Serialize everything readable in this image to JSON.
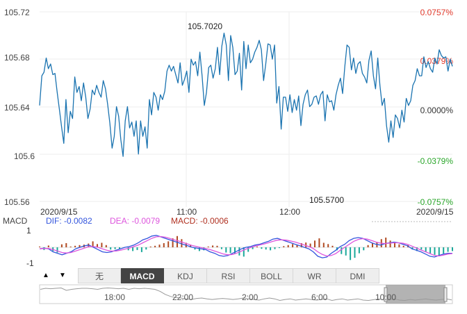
{
  "chart_data": [
    {
      "type": "line",
      "title": "",
      "y_left_ticks": [
        "105.72",
        "105.68",
        "105.64",
        "105.6",
        "105.56"
      ],
      "y_right_ticks": [
        "0.0757%",
        "0.0379%",
        "0.0000%",
        "-0.0379%",
        "-0.0757%"
      ],
      "x_ticks": [
        "2020/9/15",
        "11:00",
        "12:00",
        "2020/9/15"
      ],
      "ylim": [
        105.56,
        105.72
      ],
      "xlim": [
        0,
        186
      ],
      "annotations": {
        "high": "105.7020",
        "low": "105.5700"
      },
      "series": [
        {
          "values": [
            105.641,
            105.666,
            105.669,
            105.681,
            105.672,
            105.676,
            105.667,
            105.668,
            105.652,
            105.638,
            105.623,
            105.609,
            105.646,
            105.618,
            105.636,
            105.63,
            105.665,
            105.652,
            105.657,
            105.645,
            105.66,
            105.648,
            105.63,
            105.638,
            105.654,
            105.65,
            105.658,
            105.652,
            105.648,
            105.662,
            105.655,
            105.642,
            105.626,
            105.605,
            105.615,
            105.64,
            105.632,
            105.612,
            105.598,
            105.628,
            105.64,
            105.622,
            105.627,
            105.615,
            105.628,
            105.6,
            105.628,
            105.615,
            105.623,
            105.605,
            105.646,
            105.633,
            105.652,
            105.648,
            105.637,
            105.65,
            105.646,
            105.653,
            105.67,
            105.675,
            105.67,
            105.674,
            105.667,
            105.66,
            105.677,
            105.658,
            105.663,
            105.67,
            105.652,
            105.68,
            105.675,
            105.678,
            105.666,
            105.686,
            105.666,
            105.641,
            105.652,
            105.673,
            105.675,
            105.664,
            105.672,
            105.69,
            105.667,
            105.691,
            105.702,
            105.692,
            105.662,
            105.7,
            105.69,
            105.667,
            105.67,
            105.685,
            105.654,
            105.695,
            105.672,
            105.692,
            105.677,
            105.68,
            105.686,
            105.69,
            105.696,
            105.688,
            105.662,
            105.676,
            105.693,
            105.692,
            105.68,
            105.692,
            105.643,
            105.657,
            105.621,
            105.648,
            105.648,
            105.636,
            105.65,
            105.635,
            105.646,
            105.637,
            105.649,
            105.624,
            105.642,
            105.65,
            105.654,
            105.64,
            105.642,
            105.648,
            105.649,
            105.642,
            105.65,
            105.653,
            105.628,
            105.65,
            105.644,
            105.645,
            105.637,
            105.65,
            105.658,
            105.664,
            105.651,
            105.674,
            105.692,
            105.69,
            105.671,
            105.681,
            105.668,
            105.676,
            105.678,
            105.668,
            105.665,
            105.66,
            105.679,
            105.687,
            105.666,
            105.655,
            105.681,
            105.658,
            105.641,
            105.647,
            105.624,
            105.61,
            105.628,
            105.614,
            105.633,
            105.63,
            105.622,
            105.637,
            105.627,
            105.647,
            105.641,
            105.645,
            105.658,
            105.662,
            105.672,
            105.666,
            105.666,
            105.682,
            105.673,
            105.678,
            105.672,
            105.669,
            105.681,
            105.676,
            105.688,
            105.683,
            105.681,
            105.682,
            105.67,
            105.68,
            105.674
          ]
        }
      ]
    },
    {
      "type": "bar",
      "title": "MACD",
      "ylim": [
        -1.3,
        1.3
      ],
      "y_ticks": [
        "1",
        "-1"
      ],
      "legend": {
        "dif": "DIF: -0.0082",
        "dea": "DEA: -0.0079",
        "macd": "MACD: -0.0006"
      },
      "series": [
        {
          "name": "DIF",
          "values": [
            -0.1,
            -0.05,
            -0.1,
            -0.3,
            -0.4,
            -0.5,
            -0.4,
            -0.3,
            -0.1,
            0.0,
            0.1,
            0.15,
            0.0,
            -0.15,
            -0.3,
            -0.35,
            -0.3,
            -0.2,
            -0.1,
            0.0,
            0.05,
            0.15,
            0.3,
            0.5,
            0.6,
            0.75,
            0.8,
            0.7,
            0.6,
            0.5,
            0.4,
            0.3,
            0.2,
            0.1,
            0.0,
            -0.05,
            -0.1,
            -0.15,
            -0.3,
            -0.4,
            -0.55,
            -0.6,
            -0.55,
            -0.4,
            -0.25,
            -0.1,
            0.0,
            0.05,
            0.15,
            0.2,
            0.3,
            0.4,
            0.55,
            0.6,
            0.5,
            0.4,
            0.3,
            0.2,
            0.1,
            0.0,
            -0.1,
            -0.3,
            -0.6,
            -0.7,
            -0.65,
            -0.4,
            -0.2,
            0.05,
            0.2,
            0.45,
            0.6,
            0.65,
            0.6,
            0.45,
            0.3,
            0.2,
            0.15,
            0.25,
            0.3,
            0.35,
            0.3,
            0.2,
            0.1,
            -0.1,
            -0.2,
            -0.3,
            -0.45,
            -0.6,
            -0.65,
            -0.55,
            -0.45,
            -0.4,
            -0.4
          ]
        },
        {
          "name": "DEA",
          "values": [
            -0.1,
            -0.08,
            -0.08,
            -0.15,
            -0.25,
            -0.35,
            -0.38,
            -0.35,
            -0.25,
            -0.15,
            -0.05,
            0.05,
            0.05,
            0.0,
            -0.1,
            -0.2,
            -0.25,
            -0.25,
            -0.2,
            -0.12,
            -0.05,
            0.05,
            0.15,
            0.3,
            0.45,
            0.6,
            0.7,
            0.72,
            0.68,
            0.6,
            0.5,
            0.42,
            0.32,
            0.22,
            0.12,
            0.05,
            -0.02,
            -0.08,
            -0.15,
            -0.25,
            -0.35,
            -0.45,
            -0.5,
            -0.48,
            -0.38,
            -0.25,
            -0.12,
            -0.02,
            0.08,
            0.15,
            0.22,
            0.3,
            0.4,
            0.48,
            0.5,
            0.48,
            0.42,
            0.35,
            0.25,
            0.15,
            0.05,
            -0.08,
            -0.3,
            -0.48,
            -0.58,
            -0.55,
            -0.42,
            -0.2,
            0.0,
            0.2,
            0.4,
            0.52,
            0.58,
            0.55,
            0.45,
            0.35,
            0.28,
            0.25,
            0.28,
            0.3,
            0.3,
            0.27,
            0.2,
            0.08,
            -0.05,
            -0.18,
            -0.3,
            -0.42,
            -0.55,
            -0.58,
            -0.52,
            -0.45,
            -0.42
          ]
        },
        {
          "name": "MACD",
          "values": [
            0.05,
            -0.18,
            0.12,
            -0.25,
            -0.35,
            0.2,
            0.28,
            0.05,
            0.1,
            0.15,
            0.18,
            0.25,
            0.4,
            0.22,
            0.3,
            0.15,
            -0.15,
            -0.12,
            -0.1,
            -0.05,
            -0.2,
            -0.25,
            -0.18,
            -0.32,
            -0.15,
            0.05,
            0.1,
            0.18,
            0.28,
            0.4,
            0.6,
            0.75,
            0.55,
            0.3,
            0.15,
            -0.15,
            -0.25,
            -0.2,
            0.05,
            0.12,
            0.1,
            -0.12,
            -0.35,
            -0.38,
            -0.42,
            -0.55,
            -0.62,
            -0.3,
            -0.12,
            0.05,
            -0.1,
            -0.15,
            -0.2,
            -0.12,
            -0.05,
            0.08,
            0.15,
            0.22,
            0.15,
            0.28,
            0.32,
            0.25,
            0.45,
            0.6,
            0.3,
            0.22,
            0.1,
            -0.2,
            -0.45,
            -0.55,
            -0.85,
            -0.7,
            -0.4,
            -0.2,
            0.15,
            0.3,
            0.35,
            0.55,
            0.65,
            0.45,
            0.35,
            0.2,
            0.1,
            0.15,
            -0.15,
            -0.25,
            -0.15,
            -0.3,
            -0.4,
            -0.5,
            -0.55,
            -0.42,
            -0.3,
            -0.25
          ]
        }
      ]
    },
    {
      "type": "area",
      "title": "",
      "x_ticks": [
        "18:00",
        "22:00",
        "2:00",
        "6:00",
        "10:00"
      ],
      "series": [
        {
          "values": [
            105.715,
            105.72,
            105.718,
            105.72,
            105.722,
            105.71,
            105.715,
            105.718,
            105.72,
            105.72,
            105.718,
            105.715,
            105.72,
            105.722,
            105.72,
            105.718,
            105.72,
            105.715,
            105.72,
            105.718,
            105.72,
            105.718,
            105.715,
            105.705,
            105.69,
            105.68,
            105.675,
            105.672,
            105.668,
            105.665,
            105.67,
            105.672,
            105.668,
            105.665,
            105.668,
            105.67,
            105.668,
            105.665,
            105.668,
            105.672,
            105.668,
            105.665,
            105.662,
            105.668,
            105.672,
            105.668,
            105.66,
            105.665,
            105.668,
            105.662,
            105.665,
            105.668,
            105.665,
            105.662,
            105.665,
            105.668,
            105.66,
            105.665,
            105.668,
            105.662,
            105.665,
            105.668,
            105.662,
            105.66,
            105.664,
            105.668,
            105.662,
            105.665,
            105.668,
            105.662,
            105.66,
            105.665,
            105.662,
            105.665,
            105.668,
            105.664,
            105.662,
            105.665,
            105.668,
            105.663
          ]
        }
      ]
    }
  ],
  "tabs": [
    "无",
    "MACD",
    "KDJ",
    "RSI",
    "BOLL",
    "WR",
    "DMI"
  ],
  "active_tab": "MACD",
  "controls": {
    "up_arrow": "▲",
    "down_arrow": "▼"
  },
  "colors": {
    "price_line": "#1a73b0",
    "dif": "#3355dd",
    "dea": "#dd55dd",
    "macd_label": "#b03020",
    "macd_up": "#b04a22",
    "macd_down": "#1aa89a",
    "right_up": "#e23a2c",
    "right_down": "#2aa62a"
  }
}
